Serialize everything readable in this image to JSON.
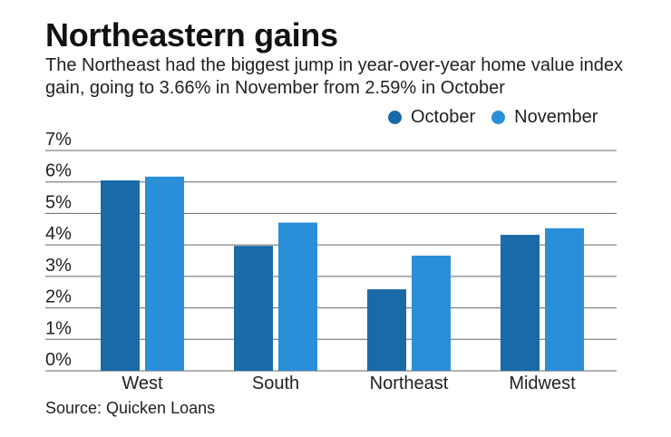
{
  "title": "Northeastern gains",
  "subtitle": "The Northeast had the biggest jump in year-over-year home value index gain, going to 3.66% in November from 2.59% in October",
  "source": "Source: Quicken Loans",
  "colors": {
    "october": "#1a6aa8",
    "november": "#2a8fd8",
    "grid": "#666666",
    "axis": "#999999"
  },
  "legend": {
    "october": "October",
    "november": "November"
  },
  "chart_data": {
    "type": "bar",
    "title": "Northeastern gains",
    "categories": [
      "West",
      "South",
      "Northeast",
      "Midwest"
    ],
    "series": [
      {
        "name": "October",
        "values": [
          6.05,
          3.97,
          2.59,
          4.32
        ]
      },
      {
        "name": "November",
        "values": [
          6.17,
          4.71,
          3.66,
          4.53
        ]
      }
    ],
    "ylim": [
      0,
      7
    ],
    "yticks": [
      "0%",
      "1%",
      "2%",
      "3%",
      "4%",
      "5%",
      "6%",
      "7%"
    ],
    "grid": true,
    "legend_position": "top-right"
  }
}
